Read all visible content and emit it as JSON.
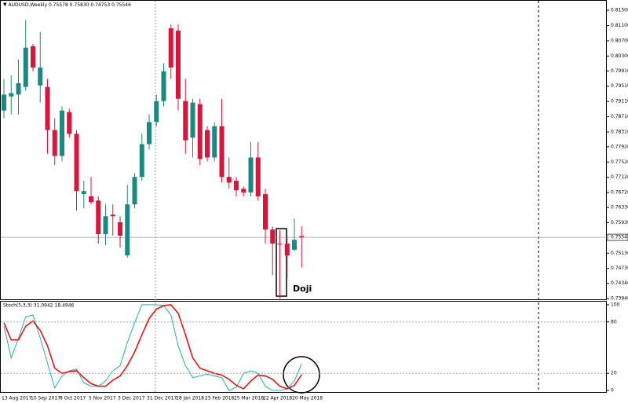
{
  "chart_data": [
    {
      "type": "candlestick",
      "symbol_label": "AUDUSD,Weekly",
      "ohlc_label": "0.75578 0.75830 0.74753 0.75546",
      "categories": [
        "13 Aug 2017",
        null,
        null,
        null,
        "10 Sep 2017",
        null,
        null,
        null,
        "8 Oct 2017",
        null,
        null,
        null,
        "5 Nov 2017",
        null,
        null,
        null,
        "3 Dec 2017",
        null,
        null,
        null,
        "31 Dec 2017",
        null,
        null,
        null,
        "28 Jan 2018",
        null,
        null,
        null,
        "25 Feb 2018",
        null,
        null,
        null,
        "25 Mar 2018",
        null,
        null,
        null,
        "22 Apr 2018",
        null,
        null,
        null,
        "20 May 2018",
        null
      ],
      "open": [
        0.7887,
        0.7924,
        0.7929,
        0.7949,
        0.8056,
        0.7953,
        0.7949,
        0.7836,
        0.7768,
        0.7883,
        0.7826,
        0.7668,
        0.7662,
        0.7651,
        0.7563,
        0.7614,
        0.7594,
        0.7507,
        0.7641,
        0.7713,
        0.7799,
        0.7857,
        0.7912,
        0.8103,
        0.8097,
        0.7912,
        0.7816,
        0.7904,
        0.7836,
        0.7764,
        0.7846,
        0.7713,
        0.7703,
        0.7682,
        0.7672,
        0.7764,
        0.7668,
        0.7575,
        0.7538,
        0.7538,
        0.7522,
        0.75578
      ],
      "high": [
        0.797,
        0.798,
        0.8021,
        0.8124,
        0.8062,
        0.8093,
        0.797,
        0.7867,
        0.7898,
        0.7892,
        0.7836,
        0.7703,
        0.7713,
        0.7662,
        0.7641,
        0.7641,
        0.761,
        0.7692,
        0.7723,
        0.7826,
        0.7877,
        0.7929,
        0.8011,
        0.8113,
        0.8113,
        0.797,
        0.7918,
        0.7918,
        0.7846,
        0.7857,
        0.7918,
        0.7764,
        0.7713,
        0.7688,
        0.7805,
        0.7805,
        0.7682,
        0.7583,
        0.7573,
        0.7559,
        0.7604,
        0.7583
      ],
      "low": [
        0.7867,
        0.7877,
        0.7877,
        0.7939,
        0.799,
        0.7908,
        0.7774,
        0.7744,
        0.7754,
        0.7816,
        0.7625,
        0.7631,
        0.7641,
        0.7538,
        0.7534,
        0.7559,
        0.7528,
        0.7501,
        0.7631,
        0.7703,
        0.7785,
        0.7846,
        0.7898,
        0.797,
        0.7887,
        0.7774,
        0.7764,
        0.7744,
        0.7754,
        0.7754,
        0.7698,
        0.7682,
        0.7662,
        0.7662,
        0.7662,
        0.7651,
        0.7538,
        0.7456,
        0.7394,
        0.7446,
        0.7518,
        0.74753
      ],
      "close": [
        0.7929,
        0.7933,
        0.7959,
        0.8052,
        0.8,
        0.8,
        0.7836,
        0.7768,
        0.7887,
        0.7826,
        0.7676,
        0.7676,
        0.7647,
        0.7563,
        0.761,
        0.761,
        0.7559,
        0.7641,
        0.7713,
        0.7799,
        0.7857,
        0.7912,
        0.799,
        0.8,
        0.7918,
        0.7809,
        0.7908,
        0.776,
        0.7764,
        0.7846,
        0.7713,
        0.7698,
        0.7678,
        0.7672,
        0.7764,
        0.7662,
        0.7575,
        0.7538,
        0.7536,
        0.7507,
        0.7548,
        0.75546
      ],
      "up_color": "#1a8a80",
      "down_color": "#dc143c",
      "ylim": [
        0.7392,
        0.8175
      ],
      "yticks": [
        {
          "value": 0.815,
          "label": "0.81500"
        },
        {
          "value": 0.811,
          "label": "0.81100"
        },
        {
          "value": 0.807,
          "label": "0.80700"
        },
        {
          "value": 0.803,
          "label": "0.80300"
        },
        {
          "value": 0.7991,
          "label": "0.79910"
        },
        {
          "value": 0.7951,
          "label": "0.79510"
        },
        {
          "value": 0.7911,
          "label": "0.79110"
        },
        {
          "value": 0.7871,
          "label": "0.78710"
        },
        {
          "value": 0.7831,
          "label": "0.78310"
        },
        {
          "value": 0.7792,
          "label": "0.77920"
        },
        {
          "value": 0.7752,
          "label": "0.77520"
        },
        {
          "value": 0.7712,
          "label": "0.77120"
        },
        {
          "value": 0.7672,
          "label": "0.76720"
        },
        {
          "value": 0.7633,
          "label": "0.76330"
        },
        {
          "value": 0.7593,
          "label": "0.75930"
        },
        {
          "value": 0.7513,
          "label": "0.75130"
        },
        {
          "value": 0.7473,
          "label": "0.74730"
        },
        {
          "value": 0.7434,
          "label": "0.74340"
        },
        {
          "value": 0.7394,
          "label": "0.73940"
        }
      ],
      "price_line": {
        "value": 0.75546,
        "label": "0.75546"
      },
      "annotation": "Doji"
    },
    {
      "type": "line",
      "title": "Stoch(5,3,3) 31.0942 18.4946",
      "series": [
        {
          "name": "Main",
          "color": "#20b2aa",
          "values": [
            75,
            38,
            61,
            86,
            88,
            61,
            32,
            3,
            17,
            23,
            25,
            9,
            5,
            5,
            11,
            23,
            29,
            56,
            79,
            100,
            100,
            100,
            99,
            88,
            52,
            29,
            15,
            17,
            19,
            17,
            15,
            0,
            4,
            20,
            23,
            20,
            5,
            0,
            0,
            2,
            11,
            31.0942
          ]
        },
        {
          "name": "Signal",
          "color": "#ff0000",
          "values": [
            79,
            59,
            59,
            75,
            81,
            70,
            52,
            26,
            20,
            22,
            23,
            15,
            8,
            5,
            5,
            12,
            17,
            29,
            45,
            65,
            84,
            95,
            99,
            100,
            90,
            65,
            38,
            26,
            23,
            20,
            18,
            13,
            6,
            2,
            11,
            18,
            17,
            13,
            5,
            2,
            6,
            18.4946
          ]
        }
      ],
      "ylim": [
        -2.7,
        103.6
      ],
      "yticks": [
        100,
        80,
        20,
        0
      ],
      "levels": [
        80,
        20
      ]
    }
  ]
}
